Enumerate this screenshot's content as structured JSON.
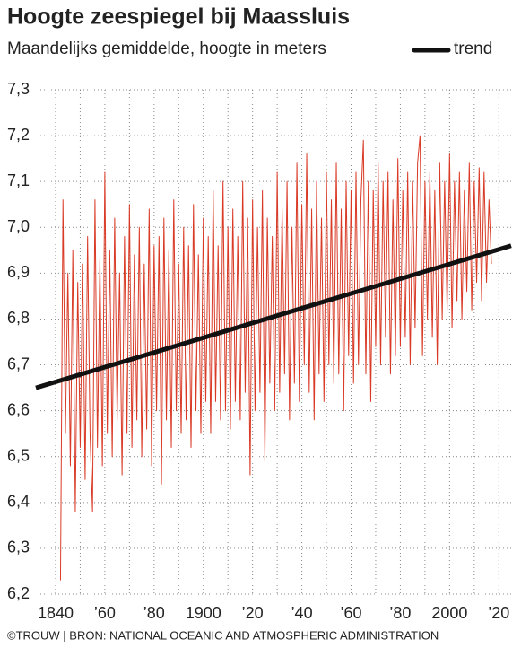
{
  "chart_data": {
    "type": "line",
    "title": "Hoogte zeespiegel bij Maassluis",
    "subtitle": "Maandelijks gemiddelde, hoogte in meters",
    "source": "©TROUW | BRON: NATIONAL OCEANIC AND ATMOSPHERIC ADMINISTRATION",
    "xlim": [
      1832,
      2025
    ],
    "ylim": [
      6.2,
      7.3
    ],
    "xticks": [
      {
        "value": 1840,
        "label": "1840"
      },
      {
        "value": 1860,
        "label": "’60"
      },
      {
        "value": 1880,
        "label": "’80"
      },
      {
        "value": 1900,
        "label": "1900"
      },
      {
        "value": 1920,
        "label": "’20"
      },
      {
        "value": 1940,
        "label": "’40"
      },
      {
        "value": 1960,
        "label": "’60"
      },
      {
        "value": 1980,
        "label": "’80"
      },
      {
        "value": 2000,
        "label": "2000"
      },
      {
        "value": 2020,
        "label": "’20"
      }
    ],
    "xminor": [
      1850,
      1870,
      1890,
      1910,
      1930,
      1950,
      1970,
      1990,
      2010
    ],
    "yticks": [
      {
        "value": 6.2,
        "label": "6,2"
      },
      {
        "value": 6.3,
        "label": "6,3"
      },
      {
        "value": 6.4,
        "label": "6,4"
      },
      {
        "value": 6.5,
        "label": "6,5"
      },
      {
        "value": 6.6,
        "label": "6,6"
      },
      {
        "value": 6.7,
        "label": "6,7"
      },
      {
        "value": 6.8,
        "label": "6,8"
      },
      {
        "value": 6.9,
        "label": "6,9"
      },
      {
        "value": 7.0,
        "label": "7,0"
      },
      {
        "value": 7.1,
        "label": "7,1"
      },
      {
        "value": 7.2,
        "label": "7,2"
      },
      {
        "value": 7.3,
        "label": "7,3"
      }
    ],
    "grid": true,
    "series": [
      {
        "color": "#d93a26",
        "width": 1,
        "x": [
          1842,
          1843,
          1844,
          1845,
          1846,
          1847,
          1848,
          1849,
          1850,
          1851,
          1852,
          1853,
          1854,
          1855,
          1856,
          1857,
          1858,
          1859,
          1860,
          1861,
          1862,
          1863,
          1864,
          1865,
          1866,
          1867,
          1868,
          1869,
          1870,
          1871,
          1872,
          1873,
          1874,
          1875,
          1876,
          1877,
          1878,
          1879,
          1880,
          1881,
          1882,
          1883,
          1884,
          1885,
          1886,
          1887,
          1888,
          1889,
          1890,
          1891,
          1892,
          1893,
          1894,
          1895,
          1896,
          1897,
          1898,
          1899,
          1900,
          1901,
          1902,
          1903,
          1904,
          1905,
          1906,
          1907,
          1908,
          1909,
          1910,
          1911,
          1912,
          1913,
          1914,
          1915,
          1916,
          1917,
          1918,
          1919,
          1920,
          1921,
          1922,
          1923,
          1924,
          1925,
          1926,
          1927,
          1928,
          1929,
          1930,
          1931,
          1932,
          1933,
          1934,
          1935,
          1936,
          1937,
          1938,
          1939,
          1940,
          1941,
          1942,
          1943,
          1944,
          1945,
          1946,
          1947,
          1948,
          1949,
          1950,
          1951,
          1952,
          1953,
          1954,
          1955,
          1956,
          1957,
          1958,
          1959,
          1960,
          1961,
          1962,
          1963,
          1964,
          1965,
          1966,
          1967,
          1968,
          1969,
          1970,
          1971,
          1972,
          1973,
          1974,
          1975,
          1976,
          1977,
          1978,
          1979,
          1980,
          1981,
          1982,
          1983,
          1984,
          1985,
          1986,
          1987,
          1988,
          1989,
          1990,
          1991,
          1992,
          1993,
          1994,
          1995,
          1996,
          1997,
          1998,
          1999,
          2000,
          2001,
          2002,
          2003,
          2004,
          2005,
          2006,
          2007,
          2008,
          2009,
          2010,
          2011,
          2012,
          2013,
          2014,
          2015,
          2016,
          2017
        ],
        "values": [
          6.23,
          7.06,
          6.55,
          6.9,
          6.48,
          6.95,
          6.38,
          6.88,
          6.52,
          6.92,
          6.45,
          6.98,
          6.55,
          6.38,
          7.06,
          6.52,
          6.93,
          6.48,
          7.12,
          6.55,
          6.95,
          6.5,
          7.02,
          6.58,
          6.9,
          6.46,
          6.98,
          6.55,
          7.05,
          6.52,
          6.94,
          6.58,
          7.0,
          6.5,
          6.92,
          6.56,
          7.04,
          6.48,
          6.96,
          6.6,
          6.98,
          6.44,
          7.02,
          6.58,
          6.95,
          6.52,
          7.06,
          6.6,
          6.92,
          6.55,
          7.0,
          6.58,
          6.96,
          6.52,
          7.05,
          6.6,
          6.94,
          6.55,
          7.02,
          6.62,
          6.98,
          6.55,
          7.08,
          6.62,
          6.96,
          6.58,
          7.1,
          6.6,
          7.0,
          6.56,
          7.04,
          6.62,
          6.98,
          6.58,
          7.1,
          6.64,
          7.02,
          6.46,
          7.06,
          6.6,
          7.0,
          6.64,
          7.08,
          6.49,
          7.02,
          6.66,
          6.98,
          6.6,
          7.12,
          6.64,
          7.04,
          6.68,
          7.1,
          6.58,
          7.0,
          6.66,
          7.14,
          6.62,
          7.05,
          6.7,
          7.16,
          6.64,
          7.04,
          6.58,
          7.1,
          6.68,
          7.02,
          6.62,
          7.12,
          6.7,
          7.06,
          6.66,
          7.14,
          6.68,
          7.04,
          6.6,
          7.1,
          6.72,
          7.08,
          6.66,
          7.12,
          6.7,
          7.06,
          7.19,
          6.68,
          7.1,
          6.62,
          7.08,
          6.74,
          7.14,
          6.7,
          7.1,
          6.76,
          7.12,
          6.68,
          7.06,
          6.72,
          7.15,
          6.74,
          7.08,
          6.76,
          7.12,
          6.7,
          7.1,
          6.78,
          7.14,
          7.2,
          6.72,
          7.1,
          6.8,
          7.12,
          6.76,
          7.08,
          6.7,
          7.14,
          6.8,
          7.1,
          6.82,
          7.16,
          6.78,
          7.1,
          6.84,
          7.12,
          6.8,
          7.08,
          6.86,
          7.14,
          6.82,
          7.1,
          6.88,
          7.13,
          6.84,
          7.12,
          6.88,
          7.06,
          6.92
        ]
      },
      {
        "name": "trend",
        "color": "#111111",
        "width": 5,
        "x": [
          1832,
          2025
        ],
        "values": [
          6.65,
          6.96
        ]
      }
    ]
  }
}
